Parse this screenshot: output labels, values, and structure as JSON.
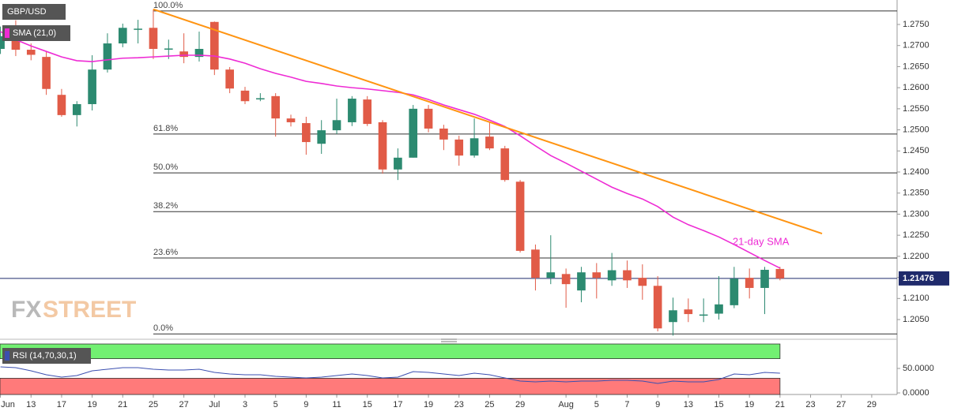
{
  "chart_data": [
    {
      "type": "candlestick",
      "title": "GBP/USD",
      "indicator": "SMA (21,0)",
      "x": [
        0,
        1,
        2,
        3,
        4,
        5,
        6,
        7,
        8,
        9,
        10,
        11,
        12,
        13,
        14,
        15,
        16,
        17,
        18,
        19,
        20,
        21,
        22,
        23,
        24,
        25,
        26,
        27,
        28,
        29,
        30,
        31,
        32,
        33,
        34,
        35,
        36,
        37,
        38,
        39,
        40,
        41,
        42,
        43,
        44,
        45,
        46,
        47,
        48,
        49,
        50,
        51
      ],
      "open": [
        1.2692,
        1.2718,
        1.269,
        1.2673,
        1.2583,
        1.2535,
        1.2561,
        1.2643,
        1.2705,
        1.2738,
        1.2742,
        1.2692,
        1.2686,
        1.2673,
        1.2756,
        1.2643,
        1.2593,
        1.2573,
        1.258,
        1.2527,
        1.2516,
        1.2467,
        1.2499,
        1.2518,
        1.2572,
        1.2518,
        1.2406,
        1.2434,
        1.255,
        1.2503,
        1.2477,
        1.2439,
        1.2484,
        1.2456,
        1.2377,
        1.2216,
        1.2149,
        1.2158,
        1.2119,
        1.2162,
        1.2143,
        1.2167,
        1.2149,
        1.213,
        1.2044,
        1.2074,
        1.206,
        1.2064,
        1.2084,
        1.2149,
        1.2125,
        1.217
      ],
      "high": [
        1.2745,
        1.276,
        1.2705,
        1.2686,
        1.2597,
        1.2568,
        1.2677,
        1.2729,
        1.2752,
        1.2761,
        1.2786,
        1.2714,
        1.2729,
        1.2733,
        1.2757,
        1.2649,
        1.2602,
        1.2587,
        1.2587,
        1.2536,
        1.2531,
        1.2523,
        1.2574,
        1.258,
        1.258,
        1.2523,
        1.2456,
        1.2559,
        1.2559,
        1.2512,
        1.2486,
        1.2527,
        1.2518,
        1.2462,
        1.2381,
        1.2228,
        1.225,
        1.2171,
        1.2175,
        1.2184,
        1.2208,
        1.219,
        1.2181,
        1.2153,
        1.2102,
        1.21,
        1.21,
        1.2153,
        1.2175,
        1.2171,
        1.2175,
        1.2175
      ],
      "low": [
        1.268,
        1.2675,
        1.2665,
        1.2583,
        1.2531,
        1.2508,
        1.2546,
        1.2636,
        1.2696,
        1.2705,
        1.2668,
        1.2668,
        1.2658,
        1.2662,
        1.263,
        1.2587,
        1.2561,
        1.2568,
        1.2484,
        1.2508,
        1.2441,
        1.2443,
        1.249,
        1.2509,
        1.2509,
        1.2396,
        1.2381,
        1.2434,
        1.2494,
        1.2452,
        1.2415,
        1.2434,
        1.2452,
        1.2377,
        1.2209,
        1.2119,
        1.2134,
        1.2078,
        1.2091,
        1.21,
        1.213,
        1.2125,
        1.2097,
        1.2022,
        1.2012,
        1.2044,
        1.2044,
        1.205,
        1.2077,
        1.21,
        1.2063,
        1.2143
      ],
      "close": [
        1.2722,
        1.269,
        1.2678,
        1.2597,
        1.2535,
        1.2561,
        1.2643,
        1.2705,
        1.2742,
        1.274,
        1.2692,
        1.2693,
        1.2673,
        1.2692,
        1.2643,
        1.2598,
        1.2568,
        1.2575,
        1.2527,
        1.2518,
        1.2471,
        1.2499,
        1.2523,
        1.2574,
        1.2514,
        1.2406,
        1.2434,
        1.255,
        1.2503,
        1.2477,
        1.2439,
        1.248,
        1.2456,
        1.2381,
        1.2213,
        1.2149,
        1.2162,
        1.2134,
        1.2162,
        1.2149,
        1.2167,
        1.2143,
        1.213,
        1.2029,
        1.2072,
        1.2063,
        1.2062,
        1.2086,
        1.2147,
        1.2125,
        1.2168,
        1.21476
      ],
      "up_color": "#2c8a70",
      "down_color": "#e15b47",
      "sma": {
        "name": "21-day SMA",
        "color": "#ee2bd4",
        "values": [
          1.2733,
          1.2714,
          1.2699,
          1.2686,
          1.2673,
          1.2664,
          1.2662,
          1.2666,
          1.267,
          1.2671,
          1.2673,
          1.2675,
          1.2677,
          1.2677,
          1.2675,
          1.2668,
          1.2658,
          1.2645,
          1.2634,
          1.2625,
          1.2615,
          1.261,
          1.2604,
          1.26,
          1.2597,
          1.2593,
          1.2589,
          1.2583,
          1.2572,
          1.2559,
          1.2548,
          1.2537,
          1.2523,
          1.2508,
          1.2486,
          1.2462,
          1.2439,
          1.2421,
          1.2402,
          1.2383,
          1.2364,
          1.2349,
          1.2336,
          1.2318,
          1.2293,
          1.2275,
          1.2261,
          1.2246,
          1.2228,
          1.2209,
          1.219,
          1.2172
        ]
      },
      "trendline": {
        "x": [
          10,
          53.75
        ],
        "values": [
          1.2786,
          1.2254
        ],
        "color": "#ff9412"
      },
      "levels": [
        {
          "label": "100.0%",
          "value": 1.2782
        },
        {
          "label": "61.8%",
          "value": 1.249
        },
        {
          "label": "50.0%",
          "value": 1.2398
        },
        {
          "label": "38.2%",
          "value": 1.2306
        },
        {
          "label": "23.6%",
          "value": 1.2196
        },
        {
          "label": "0.0%",
          "value": 1.2016
        }
      ],
      "last_price": {
        "value": 1.21476,
        "label": "1.21476"
      },
      "xlim": [
        -0.03,
        58.66
      ],
      "ylim": [
        1.2007,
        1.2808
      ],
      "yticks": [
        {
          "value": 1.205,
          "label": "1.2050"
        },
        {
          "value": 1.21,
          "label": "1.2100"
        },
        {
          "value": 1.215,
          "label": "1.2150"
        },
        {
          "value": 1.22,
          "label": "1.2200"
        },
        {
          "value": 1.225,
          "label": "1.2250"
        },
        {
          "value": 1.23,
          "label": "1.2300"
        },
        {
          "value": 1.235,
          "label": "1.2350"
        },
        {
          "value": 1.24,
          "label": "1.2400"
        },
        {
          "value": 1.245,
          "label": "1.2450"
        },
        {
          "value": 1.25,
          "label": "1.2500"
        },
        {
          "value": 1.255,
          "label": "1.2550"
        },
        {
          "value": 1.26,
          "label": "1.2600"
        },
        {
          "value": 1.265,
          "label": "1.2650"
        },
        {
          "value": 1.27,
          "label": "1.2700"
        },
        {
          "value": 1.275,
          "label": "1.2750"
        }
      ],
      "xticks": [
        {
          "value": 0,
          "label": "Jun"
        },
        {
          "value": 2,
          "label": "13"
        },
        {
          "value": 4,
          "label": "17"
        },
        {
          "value": 6,
          "label": "19"
        },
        {
          "value": 8,
          "label": "21"
        },
        {
          "value": 10,
          "label": "25"
        },
        {
          "value": 12,
          "label": "27"
        },
        {
          "value": 14,
          "label": "Jul"
        },
        {
          "value": 16,
          "label": "3"
        },
        {
          "value": 18,
          "label": "5"
        },
        {
          "value": 20,
          "label": "9"
        },
        {
          "value": 22,
          "label": "11"
        },
        {
          "value": 24,
          "label": "15"
        },
        {
          "value": 26,
          "label": "17"
        },
        {
          "value": 28,
          "label": "19"
        },
        {
          "value": 30,
          "label": "23"
        },
        {
          "value": 32,
          "label": "25"
        },
        {
          "value": 34,
          "label": "29"
        },
        {
          "value": 37,
          "label": "Aug"
        },
        {
          "value": 39,
          "label": "5"
        },
        {
          "value": 41,
          "label": "7"
        },
        {
          "value": 43,
          "label": "9"
        },
        {
          "value": 45,
          "label": "13"
        },
        {
          "value": 47,
          "label": "15"
        },
        {
          "value": 49,
          "label": "19"
        },
        {
          "value": 51,
          "label": "21"
        },
        {
          "value": 53,
          "label": "23"
        },
        {
          "value": 55,
          "label": "27"
        },
        {
          "value": 57,
          "label": "29"
        }
      ],
      "watermark": {
        "left": "FX",
        "right": "STREET"
      }
    },
    {
      "type": "line",
      "title": "RSI (14,70,30,1)",
      "overbought": 70,
      "oversold": 30,
      "overbought_color": "#72f072",
      "oversold_color": "#ff7a7a",
      "series": [
        {
          "color": "#3b4fb0",
          "values": [
            53.2,
            51.6,
            45.2,
            37.1,
            32.3,
            35.5,
            45.2,
            48.4,
            51.6,
            51.6,
            48.4,
            46.8,
            46.8,
            48.4,
            41.9,
            38.7,
            37.1,
            37.1,
            33.9,
            32.3,
            30.6,
            32.3,
            35.5,
            38.7,
            35.5,
            30.6,
            32.3,
            43.5,
            41.9,
            38.7,
            35.5,
            40.3,
            37.1,
            30.6,
            24.2,
            22.6,
            24.2,
            22.6,
            24.2,
            24.2,
            25.8,
            25.8,
            24.2,
            19.4,
            24.2,
            22.6,
            22.6,
            27.4,
            38.7,
            37.1,
            41.9,
            40.3
          ]
        }
      ],
      "ylim": [
        -3.2,
        100
      ],
      "yticks": [
        {
          "value": 50,
          "label": "50.0000"
        },
        {
          "value": 0,
          "label": "0.0000"
        }
      ]
    }
  ]
}
